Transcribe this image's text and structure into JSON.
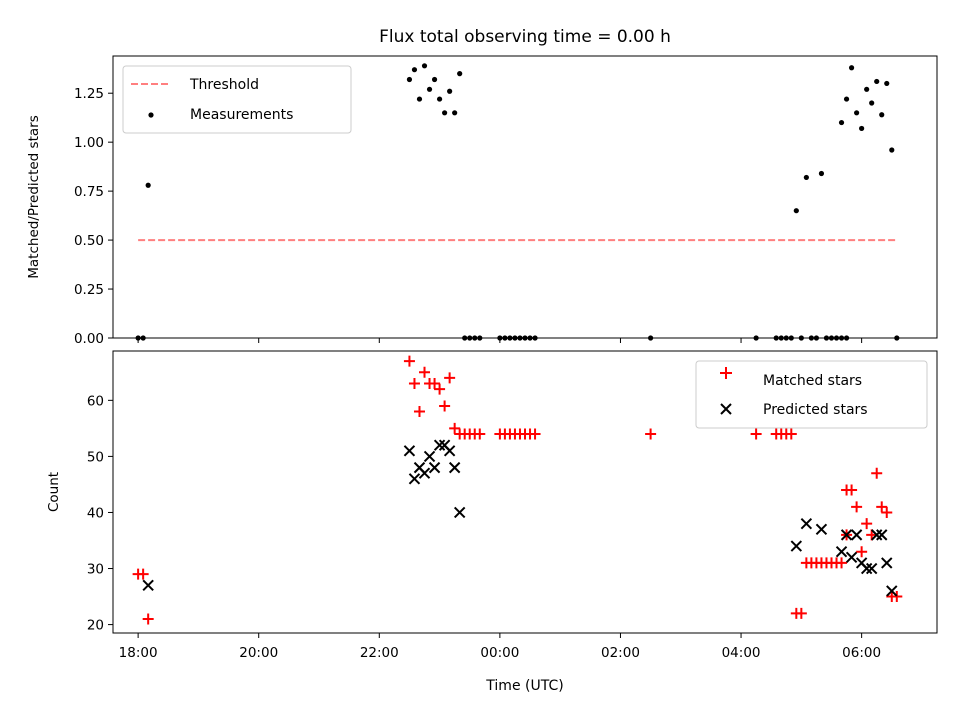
{
  "chart_data": [
    {
      "type": "scatter",
      "title": "Flux total observing time = 0.00 h",
      "xlabel": "",
      "ylabel": "Matched/Predicted stars",
      "xlim": [
        "17:35",
        "31:15"
      ],
      "ylim": [
        0,
        1.44
      ],
      "yticks": [
        "0.00",
        "0.25",
        "0.50",
        "0.75",
        "1.00",
        "1.25"
      ],
      "grid": false,
      "legend_position": "upper-left",
      "legend": [
        "Threshold",
        "Measurements"
      ],
      "threshold": {
        "name": "Threshold",
        "value": 0.5,
        "x": [
          "18:00",
          "30:35"
        ],
        "color": "#ff7f7f",
        "style": "dashed"
      },
      "series": [
        {
          "name": "Measurements",
          "marker": "dot",
          "color": "#000000",
          "points": [
            [
              "18:00",
              0
            ],
            [
              "18:05",
              0
            ],
            [
              "18:10",
              0.78
            ],
            [
              "22:30",
              1.32
            ],
            [
              "22:35",
              1.37
            ],
            [
              "22:40",
              1.22
            ],
            [
              "22:45",
              1.39
            ],
            [
              "22:50",
              1.27
            ],
            [
              "22:55",
              1.32
            ],
            [
              "23:00",
              1.22
            ],
            [
              "23:05",
              1.15
            ],
            [
              "23:10",
              1.26
            ],
            [
              "23:15",
              1.15
            ],
            [
              "23:20",
              1.35
            ],
            [
              "23:25",
              0
            ],
            [
              "23:30",
              0
            ],
            [
              "23:35",
              0
            ],
            [
              "23:40",
              0
            ],
            [
              "24:00",
              0
            ],
            [
              "24:05",
              0
            ],
            [
              "24:10",
              0
            ],
            [
              "24:15",
              0
            ],
            [
              "24:20",
              0
            ],
            [
              "24:25",
              0
            ],
            [
              "24:30",
              0
            ],
            [
              "24:35",
              0
            ],
            [
              "26:30",
              0
            ],
            [
              "28:15",
              0
            ],
            [
              "28:35",
              0
            ],
            [
              "28:40",
              0
            ],
            [
              "28:45",
              0
            ],
            [
              "28:50",
              0
            ],
            [
              "28:55",
              0.65
            ],
            [
              "29:00",
              0
            ],
            [
              "29:05",
              0.82
            ],
            [
              "29:10",
              0
            ],
            [
              "29:15",
              0
            ],
            [
              "29:20",
              0.84
            ],
            [
              "29:25",
              0
            ],
            [
              "29:30",
              0
            ],
            [
              "29:35",
              0
            ],
            [
              "29:40",
              0
            ],
            [
              "29:45",
              0
            ],
            [
              "29:40",
              1.1
            ],
            [
              "29:45",
              1.22
            ],
            [
              "29:50",
              1.38
            ],
            [
              "29:55",
              1.15
            ],
            [
              "30:00",
              1.07
            ],
            [
              "30:05",
              1.27
            ],
            [
              "30:10",
              1.2
            ],
            [
              "30:15",
              1.31
            ],
            [
              "30:20",
              1.14
            ],
            [
              "30:25",
              1.3
            ],
            [
              "30:30",
              0.96
            ],
            [
              "30:35",
              0
            ]
          ]
        }
      ]
    },
    {
      "type": "scatter",
      "title": "",
      "xlabel": "Time (UTC)",
      "ylabel": "Count",
      "xlim": [
        "17:35",
        "31:15"
      ],
      "ylim": [
        18.5,
        68.8
      ],
      "xticks": [
        "18:00",
        "20:00",
        "22:00",
        "00:00",
        "02:00",
        "04:00",
        "06:00"
      ],
      "yticks": [
        "20",
        "30",
        "40",
        "50",
        "60"
      ],
      "grid": false,
      "legend_position": "upper-right",
      "legend": [
        "Matched stars",
        "Predicted stars"
      ],
      "series": [
        {
          "name": "Matched stars",
          "marker": "plus",
          "color": "#ff0000",
          "points": [
            [
              "18:00",
              29
            ],
            [
              "18:05",
              29
            ],
            [
              "18:10",
              21
            ],
            [
              "22:30",
              67
            ],
            [
              "22:35",
              63
            ],
            [
              "22:40",
              58
            ],
            [
              "22:45",
              65
            ],
            [
              "22:50",
              63
            ],
            [
              "22:55",
              63
            ],
            [
              "23:00",
              62
            ],
            [
              "23:05",
              59
            ],
            [
              "23:10",
              64
            ],
            [
              "23:15",
              55
            ],
            [
              "23:20",
              54
            ],
            [
              "23:25",
              54
            ],
            [
              "23:30",
              54
            ],
            [
              "23:35",
              54
            ],
            [
              "23:40",
              54
            ],
            [
              "24:00",
              54
            ],
            [
              "24:05",
              54
            ],
            [
              "24:10",
              54
            ],
            [
              "24:15",
              54
            ],
            [
              "24:20",
              54
            ],
            [
              "24:25",
              54
            ],
            [
              "24:30",
              54
            ],
            [
              "24:35",
              54
            ],
            [
              "26:30",
              54
            ],
            [
              "28:15",
              54
            ],
            [
              "28:35",
              54
            ],
            [
              "28:40",
              54
            ],
            [
              "28:45",
              54
            ],
            [
              "28:50",
              54
            ],
            [
              "28:55",
              22
            ],
            [
              "29:00",
              22
            ],
            [
              "29:05",
              31
            ],
            [
              "29:10",
              31
            ],
            [
              "29:15",
              31
            ],
            [
              "29:20",
              31
            ],
            [
              "29:25",
              31
            ],
            [
              "29:30",
              31
            ],
            [
              "29:35",
              31
            ],
            [
              "29:40",
              31
            ],
            [
              "29:45",
              36
            ],
            [
              "29:45",
              44
            ],
            [
              "29:50",
              44
            ],
            [
              "29:55",
              41
            ],
            [
              "30:00",
              33
            ],
            [
              "30:05",
              38
            ],
            [
              "30:10",
              36
            ],
            [
              "30:15",
              47
            ],
            [
              "30:20",
              41
            ],
            [
              "30:25",
              40
            ],
            [
              "30:30",
              25
            ],
            [
              "30:35",
              25
            ]
          ]
        },
        {
          "name": "Predicted stars",
          "marker": "x",
          "color": "#000000",
          "points": [
            [
              "18:10",
              27
            ],
            [
              "22:30",
              51
            ],
            [
              "22:35",
              46
            ],
            [
              "22:40",
              48
            ],
            [
              "22:45",
              47
            ],
            [
              "22:50",
              50
            ],
            [
              "22:55",
              48
            ],
            [
              "23:00",
              52
            ],
            [
              "23:05",
              52
            ],
            [
              "23:10",
              51
            ],
            [
              "23:15",
              48
            ],
            [
              "23:20",
              40
            ],
            [
              "28:55",
              34
            ],
            [
              "29:05",
              38
            ],
            [
              "29:20",
              37
            ],
            [
              "29:40",
              33
            ],
            [
              "29:45",
              36
            ],
            [
              "29:50",
              32
            ],
            [
              "29:55",
              36
            ],
            [
              "30:00",
              31
            ],
            [
              "30:05",
              30
            ],
            [
              "30:10",
              30
            ],
            [
              "30:15",
              36
            ],
            [
              "30:20",
              36
            ],
            [
              "30:25",
              31
            ],
            [
              "30:30",
              26
            ]
          ]
        }
      ]
    }
  ]
}
